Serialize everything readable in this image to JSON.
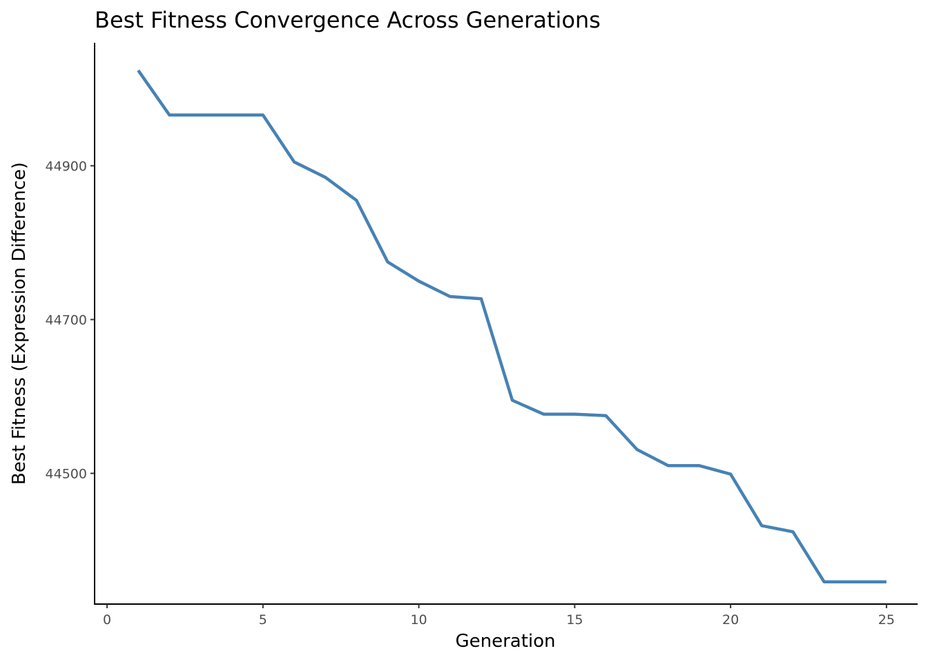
{
  "chart_data": {
    "type": "line",
    "title": "Best Fitness Convergence Across Generations",
    "xlabel": "Generation",
    "ylabel": "Best Fitness (Expression Difference)",
    "xlim": [
      -0.4,
      26.0
    ],
    "ylim": [
      44330,
      45060
    ],
    "x_ticks": [
      0,
      5,
      10,
      15,
      20,
      25
    ],
    "y_ticks": [
      44500,
      44700,
      44900
    ],
    "x_tick_labels": [
      "0",
      "5",
      "10",
      "15",
      "20",
      "25"
    ],
    "y_tick_labels": [
      "44500",
      "44700",
      "44900"
    ],
    "grid": false,
    "legend": "none",
    "line_color": "#4682B4",
    "series": [
      {
        "x": [
          1,
          2,
          3,
          4,
          5,
          6,
          7,
          8,
          9,
          10,
          11,
          12,
          13,
          14,
          15,
          16,
          17,
          18,
          19,
          20,
          21,
          22,
          23,
          24,
          25
        ],
        "y": [
          45024,
          44966,
          44966,
          44966,
          44966,
          44905,
          44885,
          44855,
          44775,
          44750,
          44730,
          44727,
          44595,
          44577,
          44577,
          44575,
          44531,
          44510,
          44510,
          44499,
          44432,
          44424,
          44359,
          44359,
          44359
        ]
      }
    ]
  }
}
